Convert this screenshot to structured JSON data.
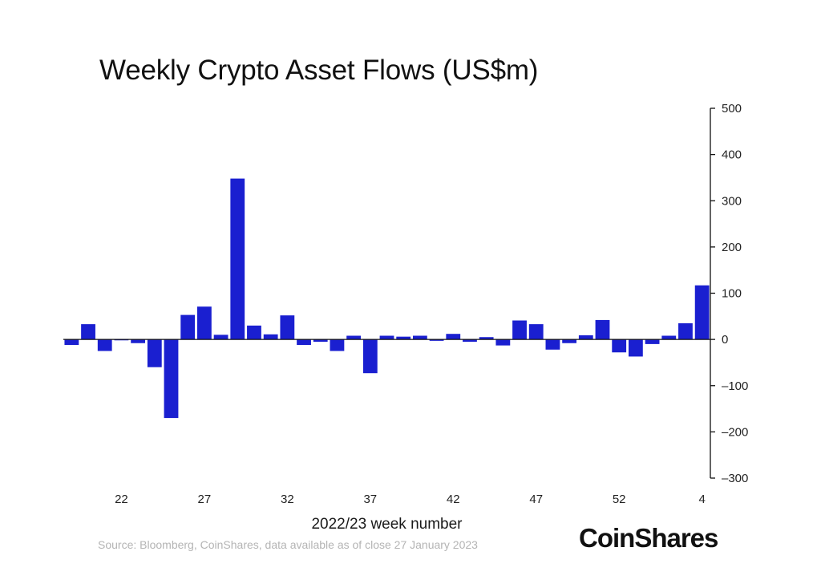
{
  "chart_data": {
    "type": "bar",
    "title": "Weekly Crypto Asset Flows (US$m)",
    "xlabel": "2022/23 week number",
    "ylabel": "",
    "ylim": [
      -300,
      500
    ],
    "yticks": [
      500,
      400,
      300,
      200,
      100,
      0,
      -100,
      -200,
      -300
    ],
    "ytick_labels": [
      "500",
      "400",
      "300",
      "200",
      "100",
      "0",
      "–100",
      "–200",
      "–300"
    ],
    "y_axis_side": "right",
    "grid": false,
    "color": "#1a1fd0",
    "categories": [
      "19",
      "20",
      "21",
      "22",
      "23",
      "24",
      "25",
      "26",
      "27",
      "28",
      "29",
      "30",
      "31",
      "32",
      "33",
      "34",
      "35",
      "36",
      "37",
      "38",
      "39",
      "40",
      "41",
      "42",
      "43",
      "44",
      "45",
      "46",
      "47",
      "48",
      "49",
      "50",
      "51",
      "52",
      "53",
      "1",
      "2",
      "3",
      "4"
    ],
    "xtick_labels": [
      "22",
      "27",
      "32",
      "37",
      "42",
      "47",
      "52",
      "4"
    ],
    "values": [
      -12,
      33,
      -25,
      -2,
      -8,
      -60,
      -170,
      53,
      71,
      10,
      348,
      30,
      11,
      52,
      -12,
      -5,
      -25,
      8,
      -73,
      8,
      6,
      8,
      -3,
      12,
      -5,
      5,
      -13,
      41,
      33,
      -22,
      -8,
      9,
      42,
      -28,
      -37,
      -10,
      8,
      35,
      117
    ]
  },
  "footer": {
    "source": "Source: Bloomberg, CoinShares, data available as of close 27 January 2023",
    "brand": "CoinShares"
  }
}
